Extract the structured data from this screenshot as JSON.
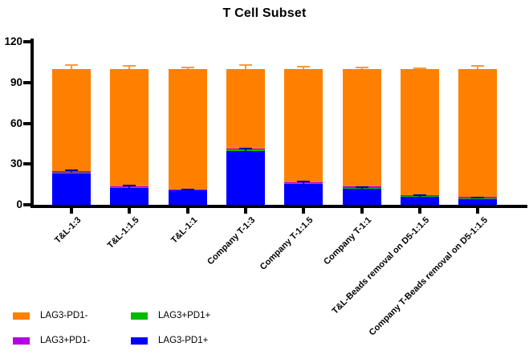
{
  "title": "T Cell Subset",
  "chart_data": {
    "type": "bar",
    "stacked": true,
    "title": "T Cell Subset",
    "xlabel": "",
    "ylabel": "",
    "ylim": [
      0,
      120
    ],
    "yticks": [
      0,
      30,
      60,
      90,
      120
    ],
    "grid": false,
    "legend_position": "bottom-left",
    "categories": [
      "T&L-1:3",
      "T&L-1:1.5",
      "T&L-1:1",
      "Company T-1:3",
      "Company T-1:1.5",
      "Company T-1:1",
      "T&L-Beads removal on D5-1:1.5",
      "Company T-Beads removal on D5-1:1.5"
    ],
    "series": [
      {
        "name": "LAG3-PD1+",
        "color": "#0000FF",
        "values": [
          23.5,
          12.5,
          10.5,
          39.5,
          15.5,
          12,
          6,
          4.5
        ],
        "error_up": [
          2,
          1.8,
          0.8,
          2,
          1.5,
          1.2,
          0.8,
          1
        ],
        "error_color": "#000099"
      },
      {
        "name": "LAG3+PD1+",
        "color": "#00BB00",
        "values": [
          0.3,
          1,
          0.5,
          1.5,
          1,
          0.3,
          1,
          0.3
        ]
      },
      {
        "name": "LAG3+PD1-",
        "color": "#B400E6",
        "values": [
          1.2,
          0.3,
          0.3,
          0.5,
          0.3,
          1.2,
          0.2,
          1
        ]
      },
      {
        "name": "LAG3-PD1-",
        "color": "#FF8000",
        "values": [
          75,
          86,
          88.5,
          58.5,
          83,
          86.5,
          92.5,
          94
        ],
        "error_up": [
          3,
          2.5,
          1,
          3,
          2,
          1,
          0.7,
          2.2
        ],
        "error_color": "#FF9A33"
      }
    ],
    "approx_totals": [
      100,
      100,
      100,
      100,
      100,
      100,
      100,
      100
    ]
  },
  "legend": {
    "items": [
      {
        "label": "LAG3-PD1-",
        "color": "#FF8000"
      },
      {
        "label": "LAG3+PD1-",
        "color": "#B400E6"
      },
      {
        "label": "LAG3+PD1+",
        "color": "#00BB00"
      },
      {
        "label": "LAG3-PD1+",
        "color": "#0000FF"
      }
    ]
  }
}
